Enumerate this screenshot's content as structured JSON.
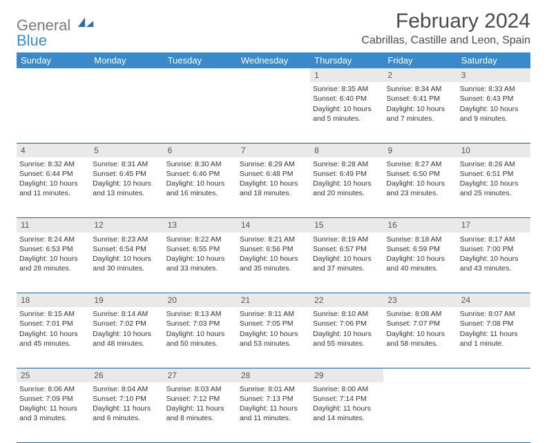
{
  "logo": {
    "general": "General",
    "blue": "Blue"
  },
  "title": "February 2024",
  "location": "Cabrillas, Castille and Leon, Spain",
  "colors": {
    "header_bg": "#3a8ac9",
    "header_text": "#ffffff",
    "daynum_bg": "#e9e9e9",
    "row_border": "#2a5d8a",
    "text": "#333333",
    "logo_gray": "#7a7a7a",
    "logo_blue": "#3a8ac9"
  },
  "weekdays": [
    "Sunday",
    "Monday",
    "Tuesday",
    "Wednesday",
    "Thursday",
    "Friday",
    "Saturday"
  ],
  "weeks": [
    {
      "nums": [
        "",
        "",
        "",
        "",
        "1",
        "2",
        "3"
      ],
      "cells": [
        null,
        null,
        null,
        null,
        {
          "sunrise": "Sunrise: 8:35 AM",
          "sunset": "Sunset: 6:40 PM",
          "day1": "Daylight: 10 hours",
          "day2": "and 5 minutes."
        },
        {
          "sunrise": "Sunrise: 8:34 AM",
          "sunset": "Sunset: 6:41 PM",
          "day1": "Daylight: 10 hours",
          "day2": "and 7 minutes."
        },
        {
          "sunrise": "Sunrise: 8:33 AM",
          "sunset": "Sunset: 6:43 PM",
          "day1": "Daylight: 10 hours",
          "day2": "and 9 minutes."
        }
      ]
    },
    {
      "nums": [
        "4",
        "5",
        "6",
        "7",
        "8",
        "9",
        "10"
      ],
      "cells": [
        {
          "sunrise": "Sunrise: 8:32 AM",
          "sunset": "Sunset: 6:44 PM",
          "day1": "Daylight: 10 hours",
          "day2": "and 11 minutes."
        },
        {
          "sunrise": "Sunrise: 8:31 AM",
          "sunset": "Sunset: 6:45 PM",
          "day1": "Daylight: 10 hours",
          "day2": "and 13 minutes."
        },
        {
          "sunrise": "Sunrise: 8:30 AM",
          "sunset": "Sunset: 6:46 PM",
          "day1": "Daylight: 10 hours",
          "day2": "and 16 minutes."
        },
        {
          "sunrise": "Sunrise: 8:29 AM",
          "sunset": "Sunset: 6:48 PM",
          "day1": "Daylight: 10 hours",
          "day2": "and 18 minutes."
        },
        {
          "sunrise": "Sunrise: 8:28 AM",
          "sunset": "Sunset: 6:49 PM",
          "day1": "Daylight: 10 hours",
          "day2": "and 20 minutes."
        },
        {
          "sunrise": "Sunrise: 8:27 AM",
          "sunset": "Sunset: 6:50 PM",
          "day1": "Daylight: 10 hours",
          "day2": "and 23 minutes."
        },
        {
          "sunrise": "Sunrise: 8:26 AM",
          "sunset": "Sunset: 6:51 PM",
          "day1": "Daylight: 10 hours",
          "day2": "and 25 minutes."
        }
      ]
    },
    {
      "nums": [
        "11",
        "12",
        "13",
        "14",
        "15",
        "16",
        "17"
      ],
      "cells": [
        {
          "sunrise": "Sunrise: 8:24 AM",
          "sunset": "Sunset: 6:53 PM",
          "day1": "Daylight: 10 hours",
          "day2": "and 28 minutes."
        },
        {
          "sunrise": "Sunrise: 8:23 AM",
          "sunset": "Sunset: 6:54 PM",
          "day1": "Daylight: 10 hours",
          "day2": "and 30 minutes."
        },
        {
          "sunrise": "Sunrise: 8:22 AM",
          "sunset": "Sunset: 6:55 PM",
          "day1": "Daylight: 10 hours",
          "day2": "and 33 minutes."
        },
        {
          "sunrise": "Sunrise: 8:21 AM",
          "sunset": "Sunset: 6:56 PM",
          "day1": "Daylight: 10 hours",
          "day2": "and 35 minutes."
        },
        {
          "sunrise": "Sunrise: 8:19 AM",
          "sunset": "Sunset: 6:57 PM",
          "day1": "Daylight: 10 hours",
          "day2": "and 37 minutes."
        },
        {
          "sunrise": "Sunrise: 8:18 AM",
          "sunset": "Sunset: 6:59 PM",
          "day1": "Daylight: 10 hours",
          "day2": "and 40 minutes."
        },
        {
          "sunrise": "Sunrise: 8:17 AM",
          "sunset": "Sunset: 7:00 PM",
          "day1": "Daylight: 10 hours",
          "day2": "and 43 minutes."
        }
      ]
    },
    {
      "nums": [
        "18",
        "19",
        "20",
        "21",
        "22",
        "23",
        "24"
      ],
      "cells": [
        {
          "sunrise": "Sunrise: 8:15 AM",
          "sunset": "Sunset: 7:01 PM",
          "day1": "Daylight: 10 hours",
          "day2": "and 45 minutes."
        },
        {
          "sunrise": "Sunrise: 8:14 AM",
          "sunset": "Sunset: 7:02 PM",
          "day1": "Daylight: 10 hours",
          "day2": "and 48 minutes."
        },
        {
          "sunrise": "Sunrise: 8:13 AM",
          "sunset": "Sunset: 7:03 PM",
          "day1": "Daylight: 10 hours",
          "day2": "and 50 minutes."
        },
        {
          "sunrise": "Sunrise: 8:11 AM",
          "sunset": "Sunset: 7:05 PM",
          "day1": "Daylight: 10 hours",
          "day2": "and 53 minutes."
        },
        {
          "sunrise": "Sunrise: 8:10 AM",
          "sunset": "Sunset: 7:06 PM",
          "day1": "Daylight: 10 hours",
          "day2": "and 55 minutes."
        },
        {
          "sunrise": "Sunrise: 8:08 AM",
          "sunset": "Sunset: 7:07 PM",
          "day1": "Daylight: 10 hours",
          "day2": "and 58 minutes."
        },
        {
          "sunrise": "Sunrise: 8:07 AM",
          "sunset": "Sunset: 7:08 PM",
          "day1": "Daylight: 11 hours",
          "day2": "and 1 minute."
        }
      ]
    },
    {
      "nums": [
        "25",
        "26",
        "27",
        "28",
        "29",
        "",
        ""
      ],
      "cells": [
        {
          "sunrise": "Sunrise: 8:06 AM",
          "sunset": "Sunset: 7:09 PM",
          "day1": "Daylight: 11 hours",
          "day2": "and 3 minutes."
        },
        {
          "sunrise": "Sunrise: 8:04 AM",
          "sunset": "Sunset: 7:10 PM",
          "day1": "Daylight: 11 hours",
          "day2": "and 6 minutes."
        },
        {
          "sunrise": "Sunrise: 8:03 AM",
          "sunset": "Sunset: 7:12 PM",
          "day1": "Daylight: 11 hours",
          "day2": "and 8 minutes."
        },
        {
          "sunrise": "Sunrise: 8:01 AM",
          "sunset": "Sunset: 7:13 PM",
          "day1": "Daylight: 11 hours",
          "day2": "and 11 minutes."
        },
        {
          "sunrise": "Sunrise: 8:00 AM",
          "sunset": "Sunset: 7:14 PM",
          "day1": "Daylight: 11 hours",
          "day2": "and 14 minutes."
        },
        null,
        null
      ]
    }
  ]
}
